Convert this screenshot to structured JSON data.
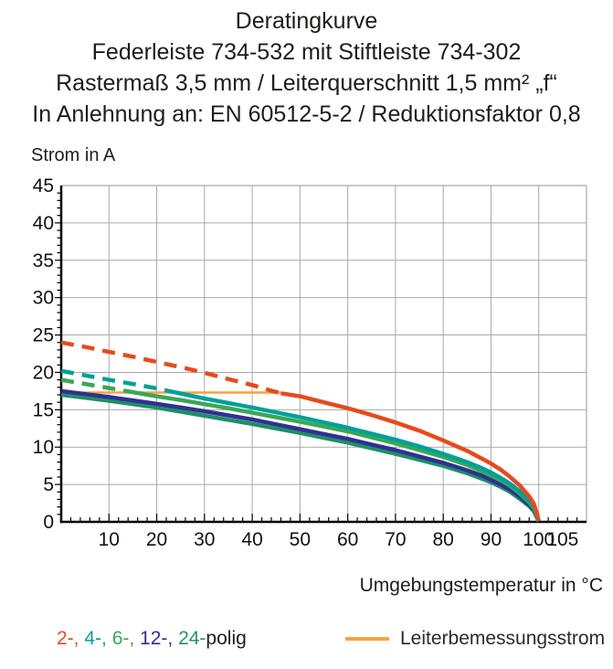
{
  "title": {
    "line1": "Deratingkurve",
    "line2": "Federleiste 734-532 mit Stiftleiste 734-302",
    "line3": "Rastermaß 3,5 mm / Leiterquerschnitt 1,5 mm² „f“",
    "line4": "In Anlehnung an: EN 60512-5-2 / Reduktionsfaktor 0,8"
  },
  "chart_data": {
    "type": "line",
    "ylabel": "Strom in A",
    "xlabel": "Umgebungstemperatur in °C",
    "xlim": [
      0,
      110
    ],
    "ylim": [
      0,
      45
    ],
    "x_ticks": [
      10,
      20,
      30,
      40,
      50,
      60,
      70,
      80,
      90,
      100,
      105
    ],
    "y_ticks": [
      0,
      5,
      10,
      15,
      20,
      25,
      30,
      35,
      40,
      45
    ],
    "grid": true,
    "grid_color": "#a9a9a9",
    "axis_color": "#000000",
    "rated_current_A": 17.3,
    "series": [
      {
        "name": "Leiterbemessungsstrom",
        "color": "#f7a239",
        "width": 2.5,
        "solid_points": [
          [
            0,
            17.3
          ],
          [
            46,
            17.3
          ]
        ]
      },
      {
        "name": "24-polig",
        "color": "#1f8e68",
        "width": 4.5,
        "solid_points": [
          [
            0,
            17.0
          ],
          [
            5,
            16.6
          ],
          [
            10,
            16.2
          ],
          [
            15,
            15.75
          ],
          [
            20,
            15.3
          ],
          [
            25,
            14.75
          ],
          [
            30,
            14.2
          ],
          [
            35,
            13.65
          ],
          [
            40,
            13.1
          ],
          [
            45,
            12.5
          ],
          [
            50,
            11.9
          ],
          [
            55,
            11.25
          ],
          [
            60,
            10.6
          ],
          [
            65,
            9.85
          ],
          [
            70,
            9.1
          ],
          [
            75,
            8.3
          ],
          [
            80,
            7.5
          ],
          [
            85,
            6.5
          ],
          [
            88,
            5.8
          ],
          [
            90,
            5.3
          ],
          [
            92,
            4.7
          ],
          [
            94,
            4.0
          ],
          [
            96,
            3.1
          ],
          [
            98,
            2.1
          ],
          [
            99,
            1.4
          ],
          [
            100,
            0.05
          ]
        ]
      },
      {
        "name": "12-polig",
        "color": "#2e3192",
        "width": 4.5,
        "solid_points": [
          [
            0,
            17.5
          ],
          [
            5,
            17.1
          ],
          [
            10,
            16.7
          ],
          [
            15,
            16.25
          ],
          [
            20,
            15.8
          ],
          [
            25,
            15.3
          ],
          [
            30,
            14.8
          ],
          [
            35,
            14.25
          ],
          [
            40,
            13.7
          ],
          [
            45,
            13.05
          ],
          [
            50,
            12.4
          ],
          [
            55,
            11.75
          ],
          [
            60,
            11.1
          ],
          [
            65,
            10.35
          ],
          [
            70,
            9.6
          ],
          [
            75,
            8.75
          ],
          [
            80,
            7.9
          ],
          [
            85,
            6.9
          ],
          [
            88,
            6.2
          ],
          [
            90,
            5.6
          ],
          [
            92,
            5.0
          ],
          [
            94,
            4.3
          ],
          [
            96,
            3.4
          ],
          [
            98,
            2.3
          ],
          [
            99,
            1.6
          ],
          [
            100,
            0.1
          ]
        ]
      },
      {
        "name": "6-polig",
        "color": "#3aa757",
        "width": 4.5,
        "dashed_points": [
          [
            0,
            19.0
          ],
          [
            5,
            18.45
          ],
          [
            10,
            17.9
          ],
          [
            15,
            17.35
          ]
        ],
        "solid_points": [
          [
            15,
            17.35
          ],
          [
            20,
            16.8
          ],
          [
            25,
            16.3
          ],
          [
            30,
            15.75
          ],
          [
            35,
            15.2
          ],
          [
            40,
            14.6
          ],
          [
            45,
            14.0
          ],
          [
            50,
            13.4
          ],
          [
            55,
            12.75
          ],
          [
            60,
            12.1
          ],
          [
            65,
            11.3
          ],
          [
            70,
            10.5
          ],
          [
            75,
            9.6
          ],
          [
            80,
            8.7
          ],
          [
            85,
            7.6
          ],
          [
            88,
            6.8
          ],
          [
            90,
            6.2
          ],
          [
            92,
            5.6
          ],
          [
            94,
            4.8
          ],
          [
            96,
            3.8
          ],
          [
            98,
            2.6
          ],
          [
            99,
            1.8
          ],
          [
            100,
            0.1
          ]
        ]
      },
      {
        "name": "4-polig",
        "color": "#00a09a",
        "width": 4.5,
        "dashed_points": [
          [
            0,
            20.2
          ],
          [
            5,
            19.6
          ],
          [
            10,
            19.0
          ],
          [
            15,
            18.45
          ],
          [
            20,
            17.85
          ],
          [
            24,
            17.3
          ]
        ],
        "solid_points": [
          [
            24,
            17.3
          ],
          [
            30,
            16.5
          ],
          [
            35,
            15.9
          ],
          [
            40,
            15.3
          ],
          [
            45,
            14.65
          ],
          [
            50,
            14.0
          ],
          [
            55,
            13.3
          ],
          [
            60,
            12.6
          ],
          [
            65,
            11.8
          ],
          [
            70,
            11.0
          ],
          [
            75,
            10.1
          ],
          [
            80,
            9.1
          ],
          [
            85,
            8.0
          ],
          [
            88,
            7.2
          ],
          [
            90,
            6.6
          ],
          [
            92,
            5.9
          ],
          [
            94,
            5.1
          ],
          [
            96,
            4.1
          ],
          [
            98,
            2.8
          ],
          [
            99,
            2.0
          ],
          [
            100,
            0.1
          ]
        ]
      },
      {
        "name": "2-polig",
        "color": "#e64a1e",
        "width": 4.5,
        "dashed_points": [
          [
            0,
            24.0
          ],
          [
            5,
            23.4
          ],
          [
            10,
            22.75
          ],
          [
            15,
            22.1
          ],
          [
            20,
            21.4
          ],
          [
            25,
            20.7
          ],
          [
            30,
            19.95
          ],
          [
            35,
            19.1
          ],
          [
            40,
            18.3
          ],
          [
            44,
            17.55
          ],
          [
            46,
            17.2
          ]
        ],
        "solid_points": [
          [
            46,
            17.2
          ],
          [
            50,
            16.8
          ],
          [
            55,
            16.0
          ],
          [
            60,
            15.2
          ],
          [
            65,
            14.3
          ],
          [
            70,
            13.3
          ],
          [
            75,
            12.2
          ],
          [
            80,
            10.9
          ],
          [
            85,
            9.5
          ],
          [
            88,
            8.5
          ],
          [
            90,
            7.8
          ],
          [
            92,
            7.0
          ],
          [
            94,
            6.0
          ],
          [
            96,
            4.9
          ],
          [
            98,
            3.4
          ],
          [
            99,
            2.4
          ],
          [
            100,
            0.2
          ]
        ]
      }
    ]
  },
  "legend": {
    "poles": [
      {
        "text": "2-,",
        "color": "#e64a1e"
      },
      {
        "text": " 4-,",
        "color": "#00a09a"
      },
      {
        "text": " 6-,",
        "color": "#3aa757"
      },
      {
        "text": " 12-,",
        "color": "#2e3192"
      },
      {
        "text": " 24-",
        "color": "#23936b"
      },
      {
        "text": "polig",
        "color": "#1d1d1b"
      }
    ],
    "rated": {
      "label": "Leiterbemessungsstrom",
      "color": "#f7a239"
    }
  }
}
